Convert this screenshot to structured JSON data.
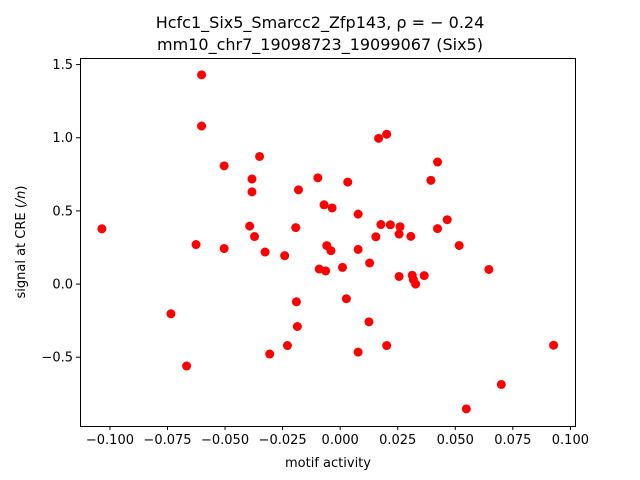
{
  "chart_data": {
    "type": "scatter",
    "title_line1": "Hcfc1_Six5_Smarcc2_Zfp143, ρ = − 0.24",
    "title_line2": "mm10_chr7_19098723_19099067 (Six5)",
    "xlabel": "motif activity",
    "ylabel": "signal at CRE (/n)",
    "xlim": [
      -0.113,
      0.102
    ],
    "ylim": [
      -0.97,
      1.545
    ],
    "x_ticks": [
      -0.1,
      -0.075,
      -0.05,
      -0.025,
      0.0,
      0.025,
      0.05,
      0.075,
      0.1
    ],
    "x_tick_labels": [
      "−0.100",
      "−0.075",
      "−0.050",
      "−0.025",
      "0.000",
      "0.025",
      "0.050",
      "0.075",
      "0.100"
    ],
    "y_ticks": [
      -0.5,
      0.0,
      0.5,
      1.0,
      1.5
    ],
    "y_tick_labels": [
      "−0.5",
      "0.0",
      "0.5",
      "1.0",
      "1.5"
    ],
    "grid": false,
    "marker_color": "#ff0000",
    "points": [
      {
        "x": -0.1035,
        "y": 0.378
      },
      {
        "x": -0.0735,
        "y": -0.203
      },
      {
        "x": -0.0667,
        "y": -0.56
      },
      {
        "x": -0.0626,
        "y": 0.27
      },
      {
        "x": -0.0602,
        "y": 1.43
      },
      {
        "x": -0.0602,
        "y": 1.08
      },
      {
        "x": -0.0504,
        "y": 0.808
      },
      {
        "x": -0.0504,
        "y": 0.243
      },
      {
        "x": -0.0393,
        "y": 0.396
      },
      {
        "x": -0.0383,
        "y": 0.718
      },
      {
        "x": -0.0383,
        "y": 0.63
      },
      {
        "x": -0.0372,
        "y": 0.325
      },
      {
        "x": -0.035,
        "y": 0.872
      },
      {
        "x": -0.0326,
        "y": 0.219
      },
      {
        "x": -0.0306,
        "y": -0.478
      },
      {
        "x": -0.0241,
        "y": 0.194
      },
      {
        "x": -0.0229,
        "y": -0.42
      },
      {
        "x": -0.0193,
        "y": 0.386
      },
      {
        "x": -0.019,
        "y": -0.121
      },
      {
        "x": -0.0186,
        "y": -0.29
      },
      {
        "x": -0.0181,
        "y": 0.644
      },
      {
        "x": -0.0097,
        "y": 0.726
      },
      {
        "x": -0.0091,
        "y": 0.103
      },
      {
        "x": -0.007,
        "y": 0.542
      },
      {
        "x": -0.0063,
        "y": 0.09
      },
      {
        "x": -0.0058,
        "y": 0.263
      },
      {
        "x": -0.004,
        "y": 0.228
      },
      {
        "x": -0.0035,
        "y": 0.52
      },
      {
        "x": 0.001,
        "y": 0.114
      },
      {
        "x": 0.0027,
        "y": -0.1
      },
      {
        "x": 0.0033,
        "y": 0.697
      },
      {
        "x": 0.0078,
        "y": 0.478
      },
      {
        "x": 0.0078,
        "y": 0.237
      },
      {
        "x": 0.0078,
        "y": -0.465
      },
      {
        "x": 0.0125,
        "y": -0.258
      },
      {
        "x": 0.0128,
        "y": 0.144
      },
      {
        "x": 0.0155,
        "y": 0.323
      },
      {
        "x": 0.0167,
        "y": 0.996
      },
      {
        "x": 0.0177,
        "y": 0.407
      },
      {
        "x": 0.0202,
        "y": 1.024
      },
      {
        "x": 0.0202,
        "y": -0.42
      },
      {
        "x": 0.0218,
        "y": 0.405
      },
      {
        "x": 0.0256,
        "y": 0.342
      },
      {
        "x": 0.0256,
        "y": 0.052
      },
      {
        "x": 0.026,
        "y": 0.392
      },
      {
        "x": 0.0307,
        "y": 0.326
      },
      {
        "x": 0.0313,
        "y": 0.06
      },
      {
        "x": 0.0318,
        "y": 0.03
      },
      {
        "x": 0.0328,
        "y": 0.0
      },
      {
        "x": 0.0365,
        "y": 0.058
      },
      {
        "x": 0.0394,
        "y": 0.709
      },
      {
        "x": 0.0423,
        "y": 0.834
      },
      {
        "x": 0.0423,
        "y": 0.379
      },
      {
        "x": 0.0465,
        "y": 0.44
      },
      {
        "x": 0.0517,
        "y": 0.264
      },
      {
        "x": 0.0548,
        "y": -0.853
      },
      {
        "x": 0.0646,
        "y": 0.1
      },
      {
        "x": 0.07,
        "y": -0.686
      },
      {
        "x": 0.0927,
        "y": -0.418
      }
    ]
  }
}
